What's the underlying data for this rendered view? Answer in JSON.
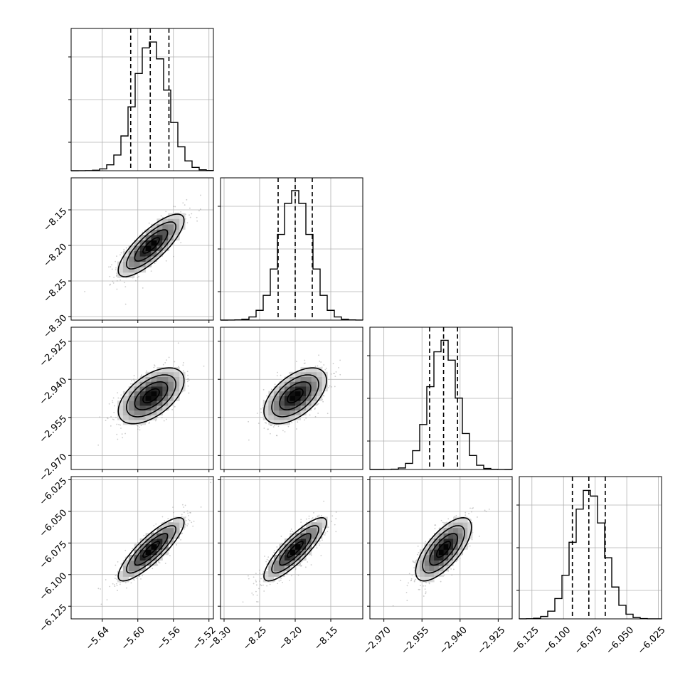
{
  "chart_data": {
    "type": "corner",
    "title": "",
    "grid": true,
    "parameters": [
      {
        "index": 0,
        "mean": -5.585,
        "sd": 0.0185,
        "range": [
          -5.675,
          -5.515
        ],
        "ticks": [
          -5.64,
          -5.6,
          -5.56,
          -5.52
        ],
        "tick_labels": [
          "−5.64",
          "−5.60",
          "−5.56",
          "−5.52"
        ],
        "quantiles": [
          -5.608,
          -5.586,
          -5.565
        ]
      },
      {
        "index": 1,
        "mean": -8.2,
        "sd": 0.022,
        "range": [
          -8.305,
          -8.105
        ],
        "ticks": [
          -8.3,
          -8.25,
          -8.2,
          -8.15
        ],
        "tick_labels": [
          "−8.30",
          "−8.25",
          "−8.20",
          "−8.15"
        ],
        "quantiles": [
          -8.224,
          -8.2,
          -8.176
        ]
      },
      {
        "index": 2,
        "mean": -2.9465,
        "sd": 0.0055,
        "range": [
          -2.9755,
          -2.9195
        ],
        "ticks": [
          -2.97,
          -2.955,
          -2.94,
          -2.925
        ],
        "tick_labels": [
          "−2.970",
          "−2.955",
          "−2.940",
          "−2.925"
        ],
        "quantiles": [
          -2.952,
          -2.9465,
          -2.941
        ]
      },
      {
        "index": 3,
        "mean": -6.08,
        "sd": 0.0125,
        "range": [
          -6.135,
          -6.0225
        ],
        "ticks": [
          -6.125,
          -6.1,
          -6.075,
          -6.05,
          -6.025
        ],
        "tick_labels": [
          "−6.125",
          "−6.100",
          "−6.075",
          "−6.050",
          "−6.025"
        ],
        "quantiles": [
          -6.093,
          -6.08,
          -6.067
        ]
      }
    ],
    "correlations": [
      {
        "pair": [
          0,
          1
        ],
        "rho": 0.8
      },
      {
        "pair": [
          0,
          2
        ],
        "rho": 0.55
      },
      {
        "pair": [
          0,
          3
        ],
        "rho": 0.85
      },
      {
        "pair": [
          1,
          2
        ],
        "rho": 0.55
      },
      {
        "pair": [
          1,
          3
        ],
        "rho": 0.85
      },
      {
        "pair": [
          2,
          3
        ],
        "rho": 0.7
      }
    ],
    "histogram_bins": 20,
    "contour_levels_sigma": [
      0.5,
      1.0,
      1.5,
      2.0
    ],
    "colors": {
      "ink": "#000000",
      "grid": "#b0b0b0",
      "samples": "#9a9a9a"
    }
  }
}
